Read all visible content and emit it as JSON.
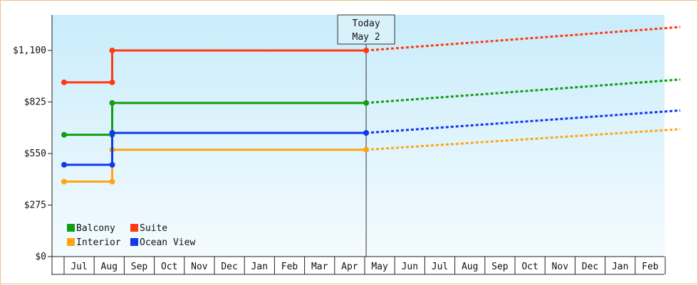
{
  "chart_data": {
    "type": "line",
    "title": "",
    "xlabel": "",
    "ylabel": "",
    "ylim": [
      0,
      1100
    ],
    "y_ticks": [
      0,
      275,
      550,
      825,
      1100
    ],
    "y_tick_labels": [
      "$0",
      "$275",
      "$550",
      "$825",
      "$1,100"
    ],
    "x_ticks": [
      "Jul",
      "Aug",
      "Sep",
      "Oct",
      "Nov",
      "Dec",
      "Jan",
      "Feb",
      "Mar",
      "Apr",
      "May",
      "Jun",
      "Jul",
      "Aug",
      "Sep",
      "Oct",
      "Nov",
      "Dec",
      "Jan",
      "Feb"
    ],
    "x_range_months": [
      0,
      20
    ],
    "today": {
      "label": "Today",
      "date": "May 2",
      "x": 10.05
    },
    "grid": false,
    "legend_position": "bottom-left",
    "series": [
      {
        "name": "Balcony",
        "color": "#129e12",
        "points": [
          [
            0,
            650
          ],
          [
            1.6,
            650
          ],
          [
            1.6,
            820
          ],
          [
            10.05,
            820
          ]
        ],
        "projection": [
          [
            10.05,
            820
          ],
          [
            20.5,
            945
          ]
        ]
      },
      {
        "name": "Suite",
        "color": "#ff3a12",
        "points": [
          [
            0,
            930
          ],
          [
            1.6,
            930
          ],
          [
            1.6,
            1100
          ],
          [
            10.05,
            1100
          ]
        ],
        "projection": [
          [
            10.05,
            1100
          ],
          [
            20.5,
            1225
          ]
        ]
      },
      {
        "name": "Interior",
        "color": "#ffa512",
        "points": [
          [
            0,
            400
          ],
          [
            1.6,
            400
          ],
          [
            1.6,
            570
          ],
          [
            10.05,
            570
          ]
        ],
        "projection": [
          [
            10.05,
            570
          ],
          [
            20.5,
            680
          ]
        ]
      },
      {
        "name": "Ocean View",
        "color": "#1237f0",
        "points": [
          [
            0,
            490
          ],
          [
            1.6,
            490
          ],
          [
            1.6,
            660
          ],
          [
            10.05,
            660
          ]
        ],
        "projection": [
          [
            10.05,
            660
          ],
          [
            20.5,
            780
          ]
        ]
      }
    ]
  }
}
